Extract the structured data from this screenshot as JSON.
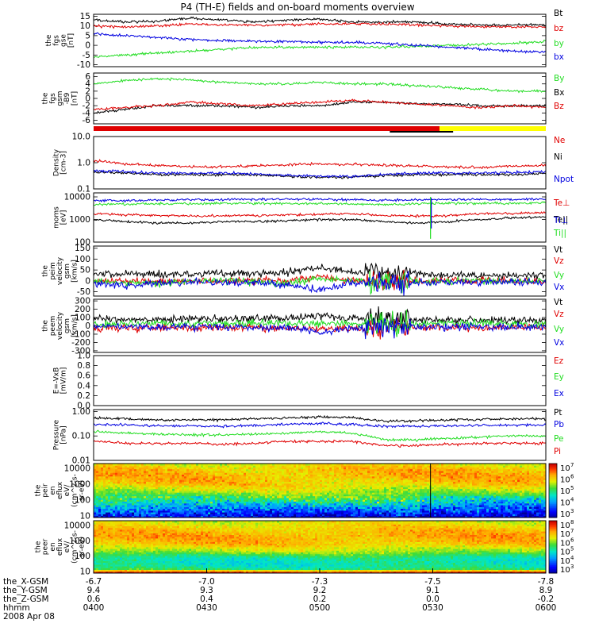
{
  "title": "P4 (TH-E) fields and on-board moments overview",
  "colors": {
    "black": "#000000",
    "red": "#e00000",
    "green": "#22dd22",
    "blue": "#0000e0",
    "yellow": "#ffff00"
  },
  "chart_data": [
    {
      "id": "p1",
      "type": "line",
      "ylabel": [
        "the",
        "fgs",
        "gse",
        "[nT]"
      ],
      "yticks": [
        "15",
        "10",
        "5",
        "0",
        "-5",
        "-10"
      ],
      "ylim": [
        -11,
        16
      ],
      "series": [
        {
          "name": "Bt",
          "color": "black",
          "values": [
            13,
            12,
            12.5,
            14,
            13,
            12,
            13,
            13.5,
            12,
            12,
            12,
            11,
            10.5,
            10.5,
            10.5
          ]
        },
        {
          "name": "bz",
          "color": "red",
          "values": [
            10,
            9.5,
            10,
            11,
            10.5,
            10.5,
            10.5,
            11,
            11,
            11,
            10.5,
            10,
            9.5,
            9.5,
            9.5
          ]
        },
        {
          "name": "by",
          "color": "green",
          "values": [
            -6,
            -5,
            -4,
            -3,
            -2,
            -1,
            -1,
            -1,
            -1,
            -1,
            -0.5,
            0,
            0.5,
            1,
            2
          ]
        },
        {
          "name": "bx",
          "color": "blue",
          "values": [
            6,
            5,
            4,
            3,
            2.5,
            2,
            2,
            1.5,
            1.5,
            1,
            0,
            -1,
            -2,
            -3,
            -3.5
          ]
        }
      ]
    },
    {
      "id": "p2",
      "type": "line",
      "ylabel": [
        "the",
        "fgs",
        "gsm",
        "-B9",
        "[nT]"
      ],
      "yticks": [
        "6",
        "4",
        "2",
        "0",
        "-2",
        "-4",
        "-6"
      ],
      "ylim": [
        -7,
        7
      ],
      "series": [
        {
          "name": "By",
          "color": "green",
          "values": [
            4,
            5,
            5.5,
            5,
            4.5,
            4,
            4,
            4.5,
            4,
            4,
            3.5,
            3,
            2.5,
            2,
            2
          ]
        },
        {
          "name": "Bx",
          "color": "black",
          "values": [
            -4,
            -3,
            -2,
            -2,
            -2,
            -2.5,
            -2,
            -2,
            -1,
            -1,
            -1.5,
            -1.5,
            -2,
            -2,
            -2
          ]
        },
        {
          "name": "Bz",
          "color": "red",
          "values": [
            -3,
            -2.5,
            -2,
            -1,
            -1.5,
            -2,
            -1.5,
            -1,
            -0.5,
            -1,
            -1.5,
            -2,
            -2.5,
            -2,
            -2.5
          ]
        }
      ]
    },
    {
      "id": "p3",
      "type": "line",
      "ylabel": [
        "Density",
        "[cm-3]"
      ],
      "ylog": true,
      "yticks": [
        "10.0",
        "1.0",
        "0.1"
      ],
      "ylim": [
        0.1,
        10
      ],
      "series": [
        {
          "name": "Ne",
          "color": "red",
          "values": [
            1.2,
            0.9,
            0.8,
            0.7,
            0.7,
            0.75,
            0.85,
            0.9,
            0.85,
            0.8,
            0.75,
            0.7,
            0.65,
            0.75,
            0.8
          ]
        },
        {
          "name": "Ni",
          "color": "black",
          "values": [
            0.45,
            0.4,
            0.35,
            0.35,
            0.35,
            0.35,
            0.3,
            0.28,
            0.28,
            0.32,
            0.35,
            0.35,
            0.35,
            0.35,
            0.38
          ]
        },
        {
          "name": "Npot",
          "color": "blue",
          "values": [
            0.5,
            0.45,
            0.4,
            0.4,
            0.4,
            0.38,
            0.33,
            0.3,
            0.3,
            0.35,
            0.4,
            0.4,
            0.4,
            0.42,
            0.45
          ]
        }
      ]
    },
    {
      "id": "p4",
      "type": "line",
      "ylabel": [
        "moms",
        "[eV]"
      ],
      "ylog": true,
      "yticks": [
        "10000",
        "1000",
        "100"
      ],
      "ylim": [
        100,
        15000
      ],
      "series": [
        {
          "name": "Te⊥",
          "color": "red",
          "values": [
            1800,
            1600,
            1500,
            1400,
            1500,
            1500,
            1600,
            1700,
            1800,
            1500,
            1400,
            1500,
            1800,
            1900,
            2000
          ]
        },
        {
          "name": "Te||",
          "color": "black",
          "values": [
            1000,
            800,
            700,
            700,
            800,
            800,
            900,
            1000,
            1000,
            800,
            700,
            800,
            1000,
            1200,
            1300
          ]
        },
        {
          "name": "Ti⊥",
          "color": "blue",
          "values": [
            7000,
            6800,
            7200,
            7500,
            7500,
            7800,
            7800,
            7800,
            7500,
            7000,
            7500,
            7500,
            7800,
            7800,
            8000
          ]
        },
        {
          "name": "Ti||",
          "color": "green",
          "values": [
            4500,
            4800,
            5000,
            5000,
            5200,
            5200,
            5000,
            5000,
            4800,
            4500,
            5000,
            5200,
            5200,
            5200,
            5500
          ]
        }
      ]
    },
    {
      "id": "p5",
      "type": "line",
      "ylabel": [
        "the",
        "peim",
        "velocity",
        "gsm",
        "[km/s]"
      ],
      "yticks": [
        "150",
        "100",
        "50",
        "0",
        "-50"
      ],
      "ylim": [
        -70,
        160
      ],
      "series": [
        {
          "name": "Vt",
          "color": "black",
          "values": [
            30,
            35,
            30,
            30,
            35,
            35,
            40,
            60,
            40,
            30,
            30,
            25,
            25,
            25,
            25
          ]
        },
        {
          "name": "Vz",
          "color": "red",
          "values": [
            0,
            0,
            -5,
            0,
            0,
            0,
            0,
            20,
            0,
            0,
            0,
            0,
            0,
            0,
            -5
          ]
        },
        {
          "name": "Vy",
          "color": "green",
          "values": [
            0,
            -10,
            -10,
            0,
            0,
            -5,
            -10,
            10,
            0,
            0,
            -5,
            0,
            0,
            0,
            0
          ]
        },
        {
          "name": "Vx",
          "color": "blue",
          "values": [
            -10,
            -20,
            -10,
            -5,
            -10,
            -5,
            -20,
            -40,
            -10,
            -5,
            -10,
            -5,
            -5,
            -5,
            -10
          ]
        }
      ]
    },
    {
      "id": "p6",
      "type": "line",
      "ylabel": [
        "the",
        "peem",
        "velocity",
        "gsm",
        "[km/s]"
      ],
      "yticks": [
        "300",
        "200",
        "100",
        "0",
        "-100",
        "-200",
        "-300"
      ],
      "ylim": [
        -320,
        320
      ],
      "series": [
        {
          "name": "Vt",
          "color": "black",
          "values": [
            80,
            80,
            70,
            80,
            80,
            90,
            90,
            120,
            90,
            80,
            80,
            70,
            70,
            70,
            70
          ]
        },
        {
          "name": "Vz",
          "color": "red",
          "values": [
            -30,
            -30,
            -20,
            -20,
            -20,
            -20,
            -30,
            -40,
            -30,
            -20,
            -20,
            -20,
            -20,
            -20,
            -20
          ]
        },
        {
          "name": "Vy",
          "color": "green",
          "values": [
            20,
            20,
            30,
            20,
            30,
            30,
            30,
            30,
            20,
            20,
            30,
            30,
            30,
            20,
            20
          ]
        },
        {
          "name": "Vx",
          "color": "blue",
          "values": [
            -10,
            -10,
            -20,
            -10,
            -10,
            -20,
            -20,
            -80,
            -30,
            -20,
            -20,
            -10,
            -10,
            -10,
            -10
          ]
        }
      ]
    },
    {
      "id": "p7",
      "type": "line",
      "ylabel": [
        "E=-VxB",
        "[mV/m]"
      ],
      "yticks": [
        "1.0",
        "0.8",
        "0.6",
        "0.4",
        "0.2",
        "0.0"
      ],
      "ylim": [
        0,
        1
      ],
      "series": [
        {
          "name": "Ez",
          "color": "red",
          "values": []
        },
        {
          "name": "Ey",
          "color": "green",
          "values": []
        },
        {
          "name": "Ex",
          "color": "blue",
          "values": []
        }
      ]
    },
    {
      "id": "p8",
      "type": "line",
      "ylabel": [
        "Pressure",
        "[nPa]"
      ],
      "ylog": true,
      "yticks": [
        "1.00",
        "0.10",
        "0.01"
      ],
      "ylim": [
        0.01,
        1.2
      ],
      "series": [
        {
          "name": "Pt",
          "color": "black",
          "values": [
            0.55,
            0.5,
            0.45,
            0.45,
            0.45,
            0.5,
            0.55,
            0.6,
            0.55,
            0.4,
            0.42,
            0.45,
            0.48,
            0.5,
            0.5
          ]
        },
        {
          "name": "Pb",
          "color": "blue",
          "values": [
            0.3,
            0.28,
            0.26,
            0.25,
            0.25,
            0.27,
            0.3,
            0.33,
            0.3,
            0.25,
            0.25,
            0.26,
            0.27,
            0.28,
            0.28
          ]
        },
        {
          "name": "Pe",
          "color": "green",
          "values": [
            0.15,
            0.13,
            0.12,
            0.11,
            0.11,
            0.12,
            0.13,
            0.15,
            0.13,
            0.07,
            0.07,
            0.08,
            0.09,
            0.1,
            0.1
          ]
        },
        {
          "name": "Pi",
          "color": "red",
          "values": [
            0.06,
            0.05,
            0.05,
            0.05,
            0.045,
            0.05,
            0.06,
            0.06,
            0.06,
            0.04,
            0.04,
            0.045,
            0.05,
            0.05,
            0.05
          ]
        }
      ]
    },
    {
      "id": "p9",
      "type": "heatmap",
      "ylabel": [
        "the",
        "peir",
        "en",
        "eflux",
        "eV/",
        "(cm^2-s-",
        "sr-eV)"
      ],
      "yticks": [
        "10000",
        "1000",
        "100",
        "10"
      ],
      "ylog": true,
      "ylim": [
        8,
        20000
      ],
      "colorbar": {
        "ticks": [
          "10^7",
          "10^6",
          "10^5",
          "10^4",
          "10^3"
        ],
        "lim": [
          3,
          7.5
        ]
      },
      "profile": {
        "log_e": [
          1,
          1.5,
          2,
          2.5,
          3,
          3.5,
          4,
          4.3
        ],
        "level": [
          3.5,
          4.2,
          5.2,
          5.8,
          6.3,
          6.5,
          6.4,
          6.1
        ]
      }
    },
    {
      "id": "p10",
      "type": "heatmap",
      "ylabel": [
        "the",
        "peer",
        "en",
        "eflux",
        "eV/",
        "(cm^2-s-",
        "sr-eV)"
      ],
      "yticks": [
        "10000",
        "1000",
        "100",
        "10"
      ],
      "ylog": true,
      "ylim": [
        8,
        20000
      ],
      "colorbar": {
        "ticks": [
          "10^8",
          "10^7",
          "10^6",
          "10^5",
          "10^4",
          "10^3"
        ],
        "lim": [
          3,
          8.3
        ]
      },
      "profile": {
        "log_e": [
          1,
          1.2,
          1.5,
          1.9,
          2.3,
          2.8,
          3.3,
          3.7,
          4.3
        ],
        "level": [
          7.5,
          5.5,
          5.3,
          5.4,
          6.3,
          7.0,
          7.2,
          7.0,
          6.6
        ]
      }
    }
  ],
  "quality_bar": {
    "segments": [
      {
        "from": 0,
        "to": 0.765,
        "color": "red"
      },
      {
        "from": 0.765,
        "to": 1,
        "color": "yellow"
      }
    ]
  },
  "axis": {
    "rows": [
      {
        "label": "the_X-GSM",
        "values": [
          "-6.7",
          "-7.0",
          "-7.3",
          "-7.5",
          "-7.8"
        ]
      },
      {
        "label": "the_Y-GSM",
        "values": [
          "9.4",
          "9.3",
          "9.2",
          "9.1",
          "8.9"
        ]
      },
      {
        "label": "the_Z-GSM",
        "values": [
          "0.6",
          "0.4",
          "0.2",
          "0.0",
          "-0.2"
        ]
      },
      {
        "label": "hhmm",
        "values": [
          "0400",
          "0430",
          "0500",
          "0530",
          "0600"
        ]
      }
    ],
    "date": "2008 Apr 08"
  }
}
